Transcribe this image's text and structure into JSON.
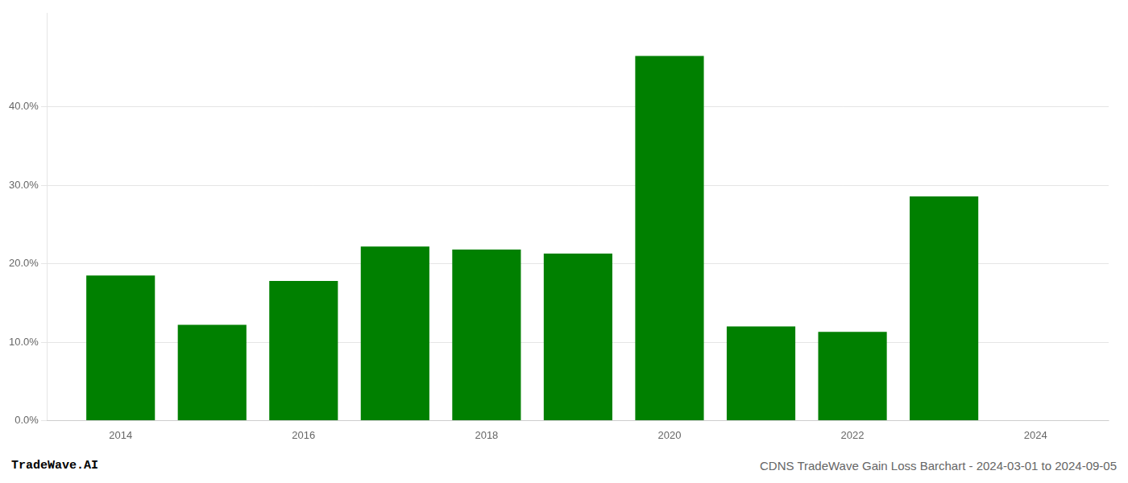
{
  "chart_data": {
    "type": "bar",
    "title": "CDNS TradeWave Gain Loss Barchart - 2024-03-01 to 2024-09-05",
    "annotations": [
      "TradeWave.AI"
    ],
    "x": [
      2014,
      2015,
      2016,
      2017,
      2018,
      2019,
      2020,
      2021,
      2022,
      2023
    ],
    "values": [
      0.185,
      0.122,
      0.178,
      0.222,
      0.218,
      0.213,
      0.465,
      0.12,
      0.113,
      0.286
    ],
    "color": "#008000",
    "xlim": [
      2013.2,
      2024.8
    ],
    "xticks": [
      2014,
      2016,
      2018,
      2020,
      2022,
      2024
    ],
    "ylim": [
      0,
      0.52
    ],
    "yticks": [
      {
        "value": 0.0,
        "label": "0.0%"
      },
      {
        "value": 0.1,
        "label": "10.0%"
      },
      {
        "value": 0.2,
        "label": "20.0%"
      },
      {
        "value": 0.3,
        "label": "30.0%"
      },
      {
        "value": 0.4,
        "label": "40.0%"
      }
    ],
    "grid": true
  }
}
